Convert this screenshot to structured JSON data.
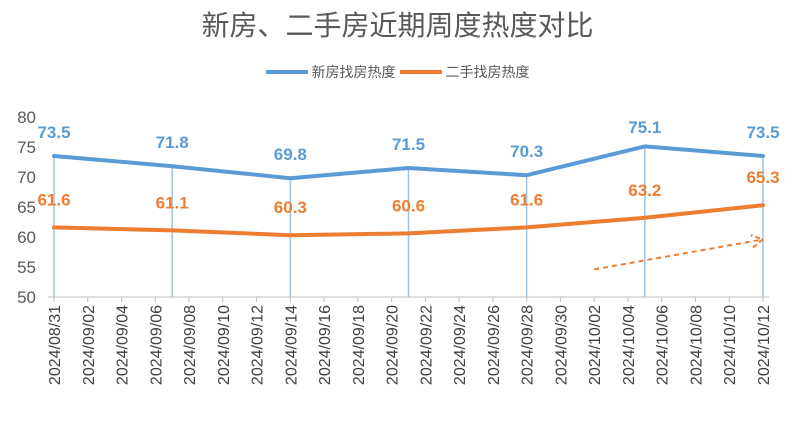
{
  "chart_data": {
    "type": "line",
    "title": "新房、二手房近期周度热度对比",
    "xlabel": "",
    "ylabel": "",
    "ylim": [
      50,
      80
    ],
    "yticks": [
      50,
      55,
      60,
      65,
      70,
      75,
      80
    ],
    "categories": [
      "2024/08/31",
      "2024/09/02",
      "2024/09/04",
      "2024/09/06",
      "2024/09/08",
      "2024/09/10",
      "2024/09/12",
      "2024/09/14",
      "2024/09/16",
      "2024/09/18",
      "2024/09/20",
      "2024/09/22",
      "2024/09/24",
      "2024/09/26",
      "2024/09/28",
      "2024/09/30",
      "2024/10/02",
      "2024/10/04",
      "2024/10/06",
      "2024/10/08",
      "2024/10/10",
      "2024/10/12"
    ],
    "series": [
      {
        "name": "新房找房热度",
        "color": "#5B9BD5",
        "points": [
          {
            "x": "2024/08/31",
            "y": 73.5
          },
          {
            "x": "2024/09/07",
            "y": 71.8
          },
          {
            "x": "2024/09/14",
            "y": 69.8
          },
          {
            "x": "2024/09/21",
            "y": 71.5
          },
          {
            "x": "2024/09/28",
            "y": 70.3
          },
          {
            "x": "2024/10/05",
            "y": 75.1
          },
          {
            "x": "2024/10/12",
            "y": 73.5
          }
        ],
        "labels": [
          "73.5",
          "71.8",
          "69.8",
          "71.5",
          "70.3",
          "75.1",
          "73.5"
        ]
      },
      {
        "name": "二手找房热度",
        "color": "#ED7D31",
        "points": [
          {
            "x": "2024/08/31",
            "y": 61.6
          },
          {
            "x": "2024/09/07",
            "y": 61.1
          },
          {
            "x": "2024/09/14",
            "y": 60.3
          },
          {
            "x": "2024/09/21",
            "y": 60.6
          },
          {
            "x": "2024/09/28",
            "y": 61.6
          },
          {
            "x": "2024/10/05",
            "y": 63.2
          },
          {
            "x": "2024/10/12",
            "y": 65.3
          }
        ],
        "labels": [
          "61.6",
          "61.1",
          "60.3",
          "60.6",
          "61.6",
          "63.2",
          "65.3"
        ]
      }
    ],
    "annotation": {
      "type": "dashed-arrow",
      "color": "#ED7D31",
      "from": {
        "x": "2024/10/02",
        "y": 54.6
      },
      "to": {
        "x": "2024/10/12",
        "y": 59.6
      }
    },
    "grid": false,
    "legend": "top-center"
  }
}
